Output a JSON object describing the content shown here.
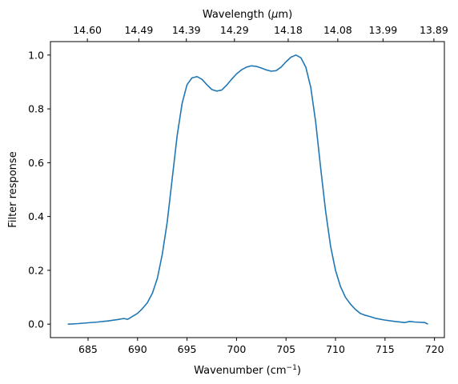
{
  "chart_data": {
    "type": "line",
    "xlabel": "Wavenumber (cm",
    "xlabel_sup": "−1",
    "xlabel_suffix": ")",
    "ylabel": "Filter response",
    "top_xlabel": "Wavelength (",
    "top_xlabel_mu": "μ",
    "top_xlabel_suffix": "m)",
    "xlim": [
      681.2,
      721.0
    ],
    "ylim": [
      -0.05,
      1.05
    ],
    "x_ticks": [
      685,
      690,
      695,
      700,
      705,
      710,
      715,
      720
    ],
    "y_ticks": [
      0.0,
      0.2,
      0.4,
      0.6,
      0.8,
      1.0
    ],
    "top_ticks": [
      {
        "label": "14.60",
        "at": 684.93
      },
      {
        "label": "14.49",
        "at": 690.13
      },
      {
        "label": "14.39",
        "at": 694.93
      },
      {
        "label": "14.29",
        "at": 699.79
      },
      {
        "label": "14.18",
        "at": 705.22
      },
      {
        "label": "14.08",
        "at": 710.23
      },
      {
        "label": "13.99",
        "at": 714.8
      },
      {
        "label": "13.89",
        "at": 719.94
      }
    ],
    "grid": false,
    "series": [
      {
        "color": "#1f77b4",
        "x": [
          683.0,
          684.0,
          685.0,
          686.0,
          687.0,
          688.0,
          688.6,
          689.0,
          690.0,
          690.5,
          691.0,
          691.5,
          692.0,
          692.5,
          693.0,
          693.5,
          694.0,
          694.5,
          695.0,
          695.5,
          696.0,
          696.5,
          697.0,
          697.5,
          698.0,
          698.5,
          699.0,
          699.5,
          700.0,
          700.5,
          701.0,
          701.5,
          702.0,
          702.5,
          703.0,
          703.5,
          704.0,
          704.5,
          705.0,
          705.5,
          706.0,
          706.5,
          707.0,
          707.5,
          708.0,
          708.5,
          709.0,
          709.5,
          710.0,
          710.5,
          711.0,
          711.5,
          712.0,
          712.5,
          713.0,
          713.5,
          714.0,
          715.0,
          716.0,
          717.0,
          717.5,
          718.0,
          719.0,
          719.3
        ],
        "y": [
          0.0,
          0.002,
          0.005,
          0.008,
          0.012,
          0.017,
          0.021,
          0.018,
          0.04,
          0.058,
          0.08,
          0.115,
          0.17,
          0.26,
          0.38,
          0.54,
          0.7,
          0.82,
          0.89,
          0.915,
          0.92,
          0.91,
          0.89,
          0.872,
          0.866,
          0.87,
          0.888,
          0.91,
          0.93,
          0.945,
          0.955,
          0.96,
          0.958,
          0.952,
          0.945,
          0.94,
          0.942,
          0.955,
          0.975,
          0.992,
          1.0,
          0.99,
          0.955,
          0.88,
          0.75,
          0.58,
          0.42,
          0.29,
          0.2,
          0.14,
          0.1,
          0.075,
          0.055,
          0.04,
          0.033,
          0.028,
          0.022,
          0.015,
          0.01,
          0.006,
          0.01,
          0.008,
          0.006,
          0.001
        ]
      }
    ]
  }
}
